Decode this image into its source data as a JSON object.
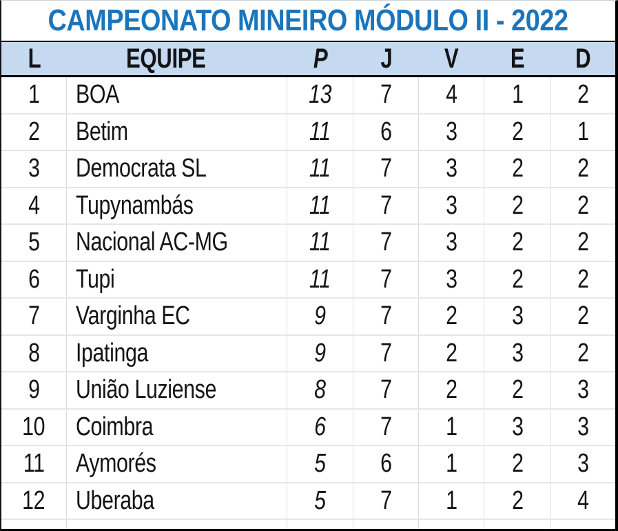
{
  "title": "CAMPEONATO MINEIRO MÓDULO II - 2022",
  "colors": {
    "title_blue": "#1b75bc",
    "header_fill": "#c5d9f1",
    "grid_vertical": "#d9dde3",
    "grid_horizontal": "#e4e6e9",
    "outer_border": "#000000",
    "text": "#141414"
  },
  "columns": [
    {
      "key": "l",
      "label": "L"
    },
    {
      "key": "equipe",
      "label": "EQUIPE"
    },
    {
      "key": "p",
      "label": "P",
      "italic": true
    },
    {
      "key": "j",
      "label": "J"
    },
    {
      "key": "v",
      "label": "V"
    },
    {
      "key": "e",
      "label": "E"
    },
    {
      "key": "d",
      "label": "D"
    }
  ],
  "chart_data": {
    "type": "table",
    "title": "CAMPEONATO MINEIRO MÓDULO II - 2022",
    "columns": [
      "L",
      "EQUIPE",
      "P",
      "J",
      "V",
      "E",
      "D"
    ],
    "rows": [
      [
        1,
        "BOA",
        13,
        7,
        4,
        1,
        2
      ],
      [
        2,
        "Betim",
        11,
        6,
        3,
        2,
        1
      ],
      [
        3,
        "Democrata SL",
        11,
        7,
        3,
        2,
        2
      ],
      [
        4,
        "Tupynambás",
        11,
        7,
        3,
        2,
        2
      ],
      [
        5,
        "Nacional AC-MG",
        11,
        7,
        3,
        2,
        2
      ],
      [
        6,
        "Tupi",
        11,
        7,
        3,
        2,
        2
      ],
      [
        7,
        "Varginha EC",
        9,
        7,
        2,
        3,
        2
      ],
      [
        8,
        "Ipatinga",
        9,
        7,
        2,
        3,
        2
      ],
      [
        9,
        "União Luziense",
        8,
        7,
        2,
        2,
        3
      ],
      [
        10,
        "Coimbra",
        6,
        7,
        1,
        3,
        3
      ],
      [
        11,
        "Aymorés",
        5,
        6,
        1,
        2,
        3
      ],
      [
        12,
        "Uberaba",
        5,
        7,
        1,
        2,
        4
      ]
    ]
  }
}
